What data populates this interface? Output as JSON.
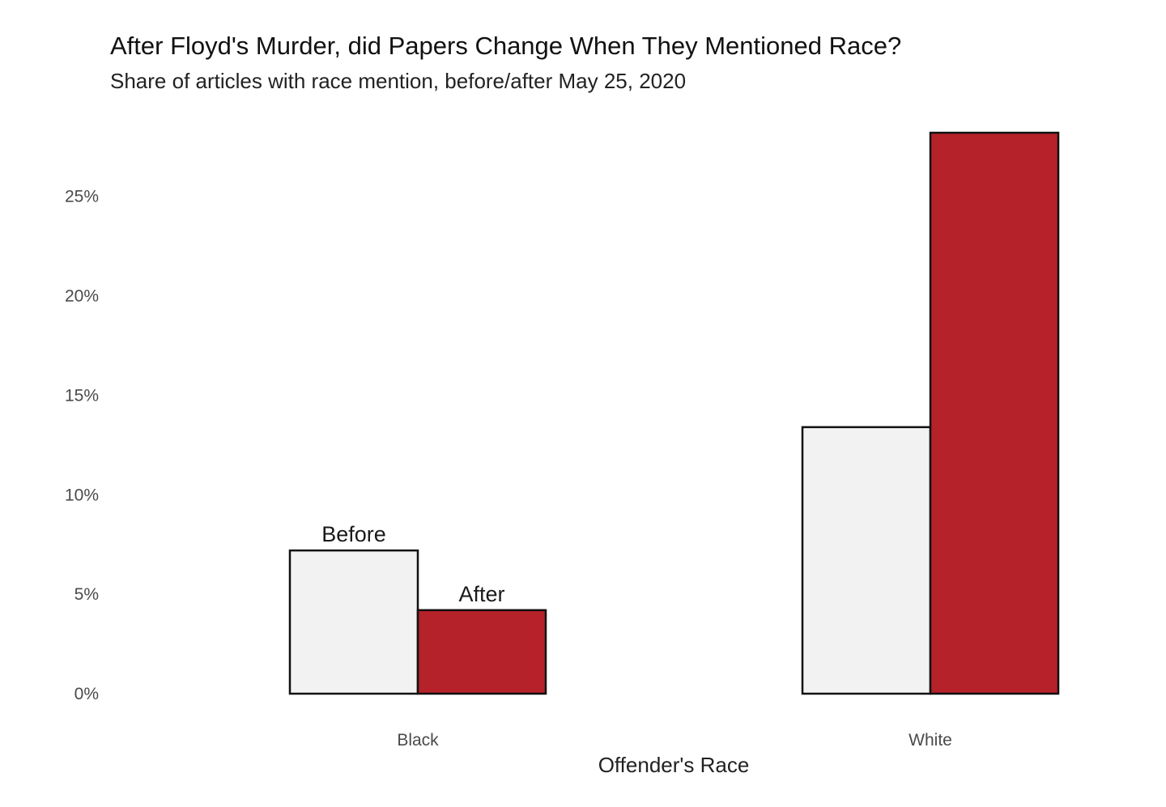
{
  "chart_data": {
    "type": "bar",
    "title": "After Floyd's Murder, did Papers Change When They Mentioned Race?",
    "subtitle": "Share of articles with race mention, before/after May 25, 2020",
    "xlabel": "Offender's Race",
    "ylabel": "",
    "categories": [
      "Black",
      "White"
    ],
    "series": [
      {
        "name": "Before",
        "values": [
          7.2,
          13.4
        ],
        "color": "#f2f2f2"
      },
      {
        "name": "After",
        "values": [
          4.2,
          28.2
        ],
        "color": "#b5222a"
      }
    ],
    "ylim": [
      0,
      28.2
    ],
    "yticks": [
      0,
      5,
      10,
      15,
      20,
      25
    ],
    "ytick_labels": [
      "0%",
      "5%",
      "10%",
      "15%",
      "20%",
      "25%"
    ],
    "value_format": "percent",
    "grid": false,
    "legend": "none",
    "bar_labels_on": "Black"
  }
}
